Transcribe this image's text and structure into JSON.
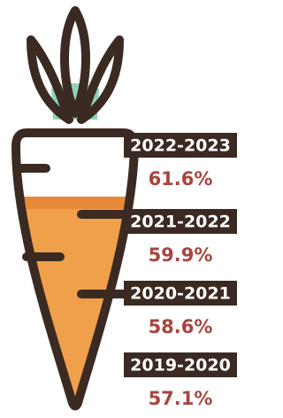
{
  "items": [
    {
      "period": "2022-2023",
      "value": "61.6%"
    },
    {
      "period": "2021-2022",
      "value": "59.9%"
    },
    {
      "period": "2020-2021",
      "value": "58.6%"
    },
    {
      "period": "2019-2020",
      "value": "57.1%"
    }
  ]
}
